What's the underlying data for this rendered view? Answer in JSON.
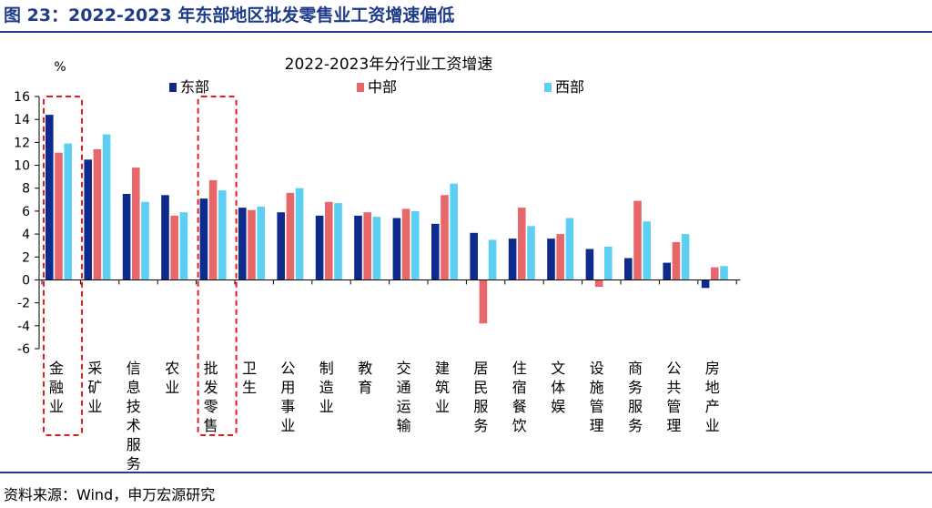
{
  "figure_title": "图 23：2022-2023 年东部地区批发零售业工资增速偏低",
  "source": "资料来源：Wind，申万宏源研究",
  "colors": {
    "east": "#0e2a8c",
    "central": "#e8676a",
    "west": "#5ccff2",
    "highlight": "#e8191c",
    "accent": "#1f3c88"
  },
  "chart_data": {
    "type": "bar",
    "title": "2022-2023年分行业工资增速",
    "ylabel": "%",
    "xlabel": "",
    "ylim": [
      -6,
      16
    ],
    "yticks": [
      -6,
      -4,
      -2,
      0,
      2,
      4,
      6,
      8,
      10,
      12,
      14,
      16
    ],
    "ytick_labels": [
      "-6",
      "-4",
      "-2",
      "0",
      "2",
      "4",
      "6",
      "8",
      "10",
      "12",
      "14",
      "16"
    ],
    "categories": [
      "金融业",
      "采矿业",
      "信息技术服务",
      "农业",
      "批发零售",
      "卫生",
      "公用事业",
      "制造业",
      "教育",
      "交通运输",
      "建筑业",
      "居民服务",
      "住宿餐饮",
      "文体娱",
      "设施管理",
      "商务服务",
      "公共管理",
      "房地产业"
    ],
    "series": [
      {
        "name": "东部",
        "values": [
          14.4,
          10.5,
          7.5,
          7.4,
          7.1,
          6.3,
          5.9,
          5.6,
          5.6,
          5.4,
          4.9,
          4.1,
          3.6,
          3.6,
          2.7,
          1.9,
          1.5,
          -0.7
        ]
      },
      {
        "name": "中部",
        "values": [
          11.1,
          11.4,
          9.8,
          5.6,
          8.7,
          6.1,
          7.6,
          6.8,
          5.9,
          6.2,
          7.4,
          -3.8,
          6.3,
          4.0,
          -0.6,
          6.9,
          3.3,
          1.1
        ]
      },
      {
        "name": "西部",
        "values": [
          11.9,
          12.7,
          6.8,
          5.9,
          7.8,
          6.4,
          8.0,
          6.7,
          5.5,
          6.0,
          8.4,
          3.5,
          4.7,
          5.4,
          2.9,
          5.1,
          4.0,
          1.2
        ]
      }
    ],
    "legend_position": "top",
    "grid": false,
    "highlighted_categories": [
      "金融业",
      "批发零售"
    ]
  }
}
